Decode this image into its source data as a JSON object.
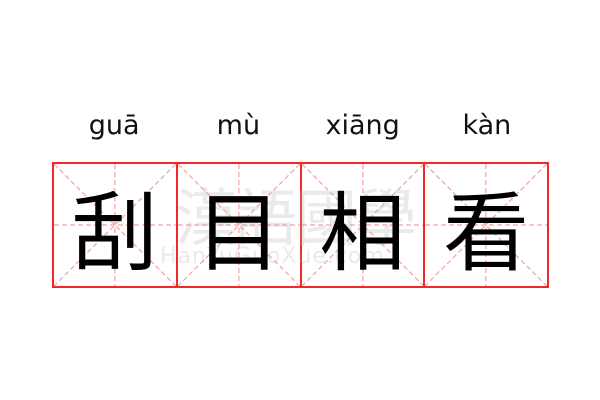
{
  "pinyin": [
    "guā",
    "mù",
    "xiāng",
    "kàn"
  ],
  "characters": [
    "刮",
    "目",
    "相",
    "看"
  ],
  "watermark": {
    "chinese": "漢語國學",
    "latin": "HanYuGuoXue.com"
  },
  "colors": {
    "grid_border": "#f02828",
    "guide_lines": "#f7a0a0",
    "text": "#000000"
  }
}
